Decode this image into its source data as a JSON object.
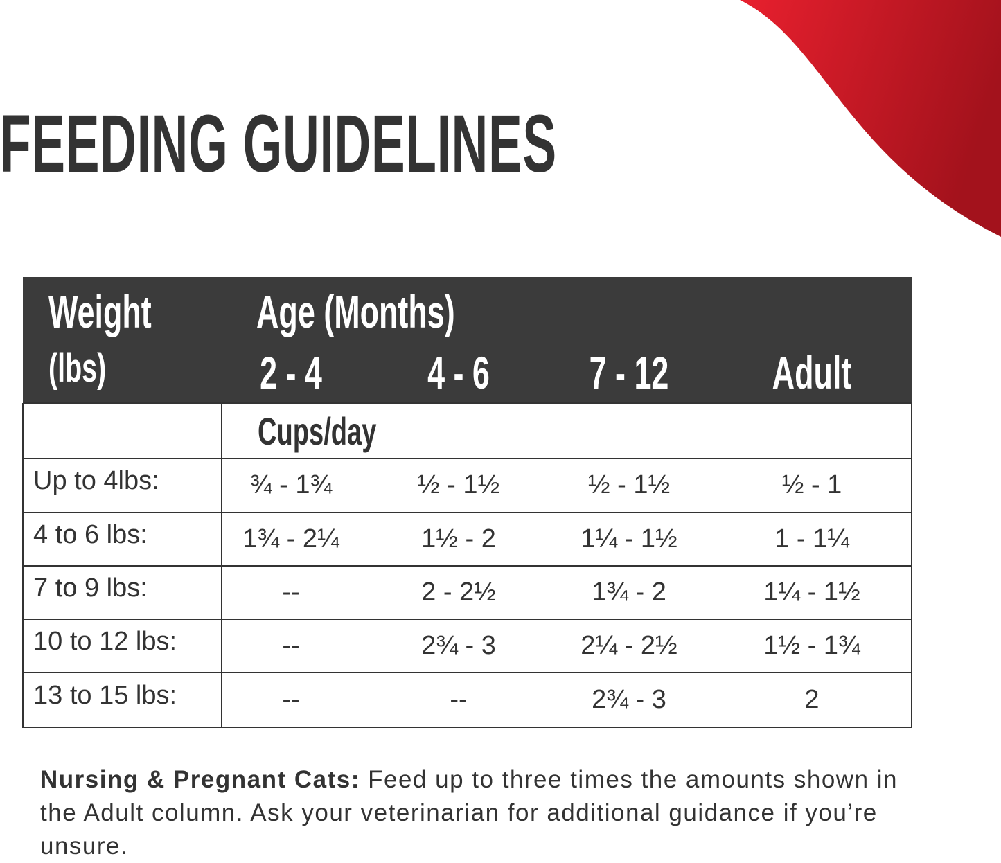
{
  "title": "FEEDING GUIDELINES",
  "table": {
    "header": {
      "weight": "Weight",
      "weight_unit": "(lbs)",
      "age": "Age (Months)",
      "columns": [
        "2 - 4",
        "4 - 6",
        "7 - 12",
        "Adult"
      ]
    },
    "unit_row": "Cups/day",
    "rows": [
      [
        "Up to 4lbs:",
        "¾ - 1¾",
        "½ - 1½",
        "½ - 1½",
        "½ - 1"
      ],
      [
        "4 to 6 lbs:",
        "1¾ - 2¼",
        "1½ - 2",
        "1¼ - 1½",
        "1 - 1¼"
      ],
      [
        "7 to 9 lbs:",
        "--",
        "2 - 2½",
        "1¾ - 2",
        "1¼ - 1½"
      ],
      [
        "10 to 12 lbs:",
        "--",
        "2¾ - 3",
        "2¼ - 2½",
        "1½ - 1¾"
      ],
      [
        "13 to 15 lbs:",
        "--",
        "--",
        "2¾ - 3",
        "2"
      ]
    ]
  },
  "note": {
    "label": "Nursing & Pregnant Cats:",
    "text": "Feed up to three times the amounts shown in the Adult column. Ask your veterinarian for additional guidance if you’re unsure."
  }
}
